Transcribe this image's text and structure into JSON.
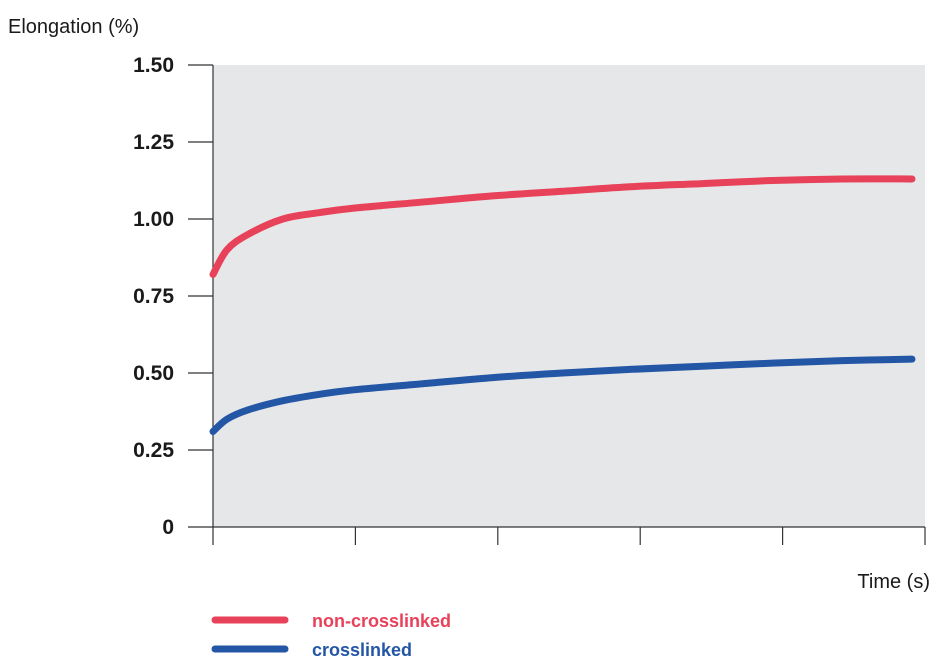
{
  "chart_data": {
    "type": "line",
    "title": "",
    "xlabel": "Time (s)",
    "ylabel": "Elongation (%)",
    "ylim": [
      0,
      1.5
    ],
    "yticks": [
      "0",
      "0.25",
      "0.50",
      "0.75",
      "1.00",
      "1.25",
      "1.50"
    ],
    "ytick_values": [
      0,
      0.25,
      0.5,
      0.75,
      1.0,
      1.25,
      1.5
    ],
    "x_tick_count": 6,
    "xlim": [
      0,
      1
    ],
    "background_color": "#e6e7e8",
    "legend_position": "bottom-left",
    "series": [
      {
        "name": "non-crosslinked",
        "color": "#e8415a",
        "x": [
          0,
          0.02,
          0.05,
          0.1,
          0.15,
          0.2,
          0.3,
          0.4,
          0.5,
          0.6,
          0.7,
          0.8,
          0.9,
          1.0
        ],
        "y": [
          0.82,
          0.9,
          0.95,
          1.0,
          1.02,
          1.035,
          1.055,
          1.075,
          1.09,
          1.105,
          1.115,
          1.125,
          1.13,
          1.13
        ]
      },
      {
        "name": "crosslinked",
        "color": "#2456a6",
        "x": [
          0,
          0.02,
          0.05,
          0.1,
          0.15,
          0.2,
          0.3,
          0.4,
          0.5,
          0.6,
          0.7,
          0.8,
          0.9,
          1.0
        ],
        "y": [
          0.31,
          0.35,
          0.38,
          0.41,
          0.43,
          0.445,
          0.465,
          0.485,
          0.5,
          0.512,
          0.522,
          0.532,
          0.54,
          0.545
        ]
      }
    ]
  }
}
